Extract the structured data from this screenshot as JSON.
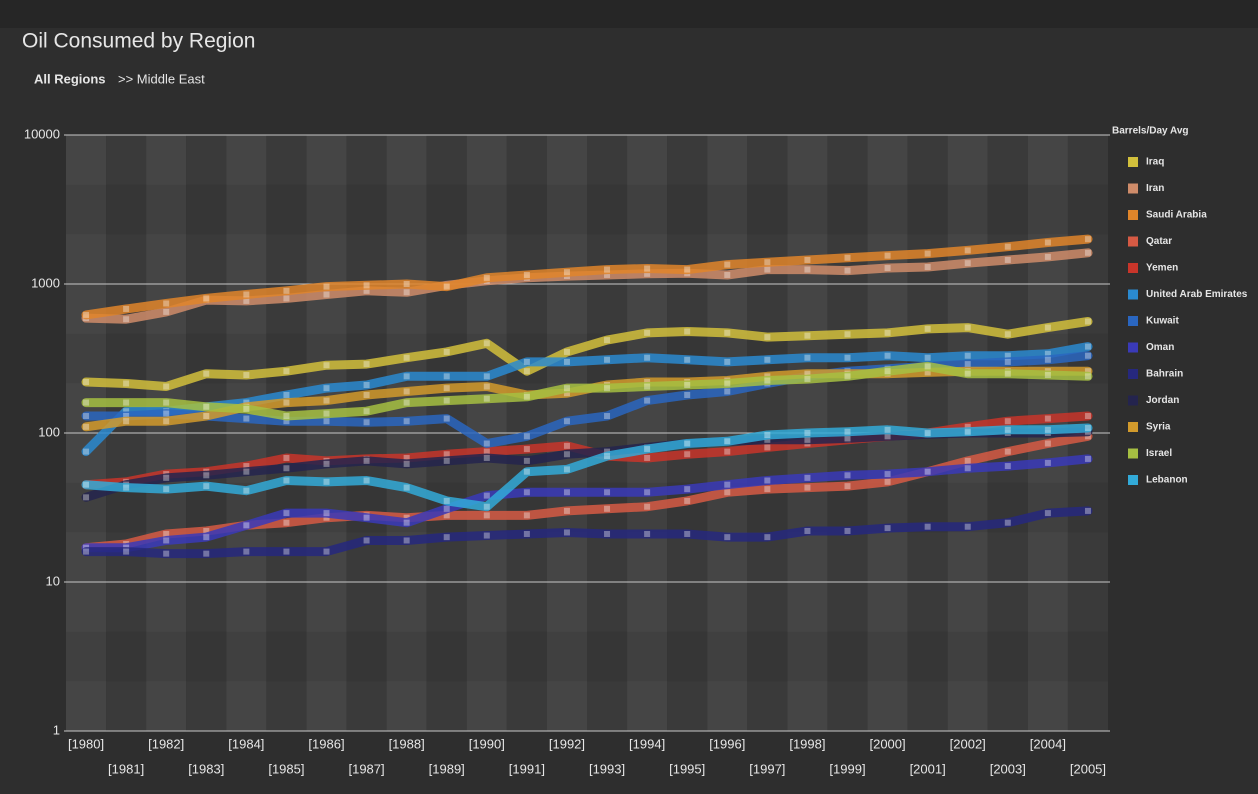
{
  "chart_data": {
    "type": "line",
    "title": "Oil Consumed by Region",
    "breadcrumb": [
      "All Regions",
      ">> Middle East"
    ],
    "legend_title": "Barrels/Day Avg",
    "legend_position": "right",
    "log_scale": true,
    "grid": true,
    "ylim": [
      1,
      10000
    ],
    "yticks": [
      1,
      10,
      100,
      1000,
      10000
    ],
    "categories": [
      "[1980]",
      "[1981]",
      "[1982]",
      "[1983]",
      "[1984]",
      "[1985]",
      "[1986]",
      "[1987]",
      "[1988]",
      "[1989]",
      "[1990]",
      "[1991]",
      "[1992]",
      "[1993]",
      "[1994]",
      "[1995]",
      "[1996]",
      "[1997]",
      "[1998]",
      "[1999]",
      "[2000]",
      "[2001]",
      "[2002]",
      "[2003]",
      "[2004]",
      "[2005]"
    ],
    "series": [
      {
        "name": "Iraq",
        "color": "#d2c03c",
        "values": [
          220,
          215,
          205,
          250,
          245,
          260,
          285,
          290,
          320,
          350,
          400,
          260,
          350,
          420,
          470,
          480,
          470,
          440,
          450,
          460,
          470,
          500,
          510,
          460,
          510,
          560
        ]
      },
      {
        "name": "Iran",
        "color": "#cf8c6a",
        "values": [
          590,
          580,
          650,
          780,
          770,
          800,
          850,
          900,
          880,
          980,
          1050,
          1100,
          1130,
          1150,
          1170,
          1180,
          1150,
          1250,
          1250,
          1230,
          1280,
          1300,
          1380,
          1450,
          1520,
          1620
        ]
      },
      {
        "name": "Saudi Arabia",
        "color": "#e0852a",
        "values": [
          620,
          680,
          740,
          800,
          850,
          900,
          960,
          980,
          1000,
          960,
          1100,
          1150,
          1200,
          1250,
          1270,
          1250,
          1350,
          1400,
          1450,
          1500,
          1550,
          1600,
          1680,
          1780,
          1900,
          2000
        ]
      },
      {
        "name": "Qatar",
        "color": "#d65a44",
        "values": [
          17,
          18,
          21,
          22,
          24,
          25,
          27,
          28,
          27,
          28,
          28,
          28,
          30,
          31,
          32,
          35,
          40,
          42,
          43,
          44,
          47,
          55,
          65,
          75,
          85,
          95
        ]
      },
      {
        "name": "Yemen",
        "color": "#c8352a",
        "values": [
          45,
          47,
          53,
          55,
          60,
          68,
          65,
          67,
          68,
          72,
          75,
          78,
          82,
          70,
          68,
          72,
          75,
          80,
          85,
          90,
          95,
          100,
          110,
          120,
          125,
          130
        ]
      },
      {
        "name": "United Arab Emirates",
        "color": "#2a8ad0",
        "values": [
          75,
          140,
          140,
          150,
          160,
          180,
          200,
          210,
          240,
          240,
          240,
          300,
          300,
          310,
          320,
          310,
          300,
          310,
          320,
          320,
          330,
          320,
          330,
          330,
          340,
          380
        ]
      },
      {
        "name": "Kuwait",
        "color": "#2a66c0",
        "values": [
          130,
          130,
          135,
          130,
          125,
          120,
          120,
          118,
          120,
          125,
          85,
          95,
          120,
          130,
          165,
          180,
          190,
          215,
          240,
          260,
          270,
          280,
          290,
          300,
          310,
          330
        ]
      },
      {
        "name": "Oman",
        "color": "#3a3ab8",
        "values": [
          17,
          17,
          19,
          20,
          24,
          29,
          29,
          27,
          25,
          31,
          38,
          40,
          40,
          40,
          40,
          42,
          45,
          48,
          50,
          52,
          53,
          55,
          58,
          60,
          63,
          67
        ]
      },
      {
        "name": "Bahrain",
        "color": "#26287e",
        "values": [
          16,
          16,
          15.5,
          15.5,
          16,
          16,
          16,
          19,
          19,
          20,
          20.5,
          21,
          21.5,
          21,
          21,
          21,
          20,
          20,
          22,
          22,
          23,
          23.5,
          23.5,
          25,
          29,
          30
        ]
      },
      {
        "name": "Jordan",
        "color": "#24244e",
        "values": [
          37,
          45,
          50,
          52,
          55,
          58,
          62,
          65,
          62,
          65,
          68,
          65,
          72,
          75,
          80,
          85,
          88,
          90,
          90,
          92,
          95,
          98,
          100,
          100,
          100,
          102
        ]
      },
      {
        "name": "Syria",
        "color": "#d29a2c",
        "values": [
          110,
          120,
          120,
          130,
          150,
          160,
          165,
          180,
          190,
          200,
          205,
          180,
          185,
          210,
          220,
          220,
          225,
          240,
          250,
          250,
          250,
          255,
          260,
          260,
          260,
          260
        ]
      },
      {
        "name": "Israel",
        "color": "#a6bf42",
        "values": [
          160,
          160,
          160,
          150,
          145,
          130,
          135,
          140,
          160,
          165,
          170,
          175,
          200,
          200,
          205,
          210,
          215,
          225,
          230,
          240,
          260,
          280,
          250,
          250,
          245,
          240
        ]
      },
      {
        "name": "Lebanon",
        "color": "#32aad8",
        "values": [
          45,
          43,
          42,
          44,
          41,
          48,
          47,
          48,
          43,
          35,
          32,
          55,
          57,
          70,
          78,
          85,
          88,
          97,
          100,
          102,
          105,
          100,
          102,
          105,
          105,
          108
        ]
      }
    ]
  }
}
